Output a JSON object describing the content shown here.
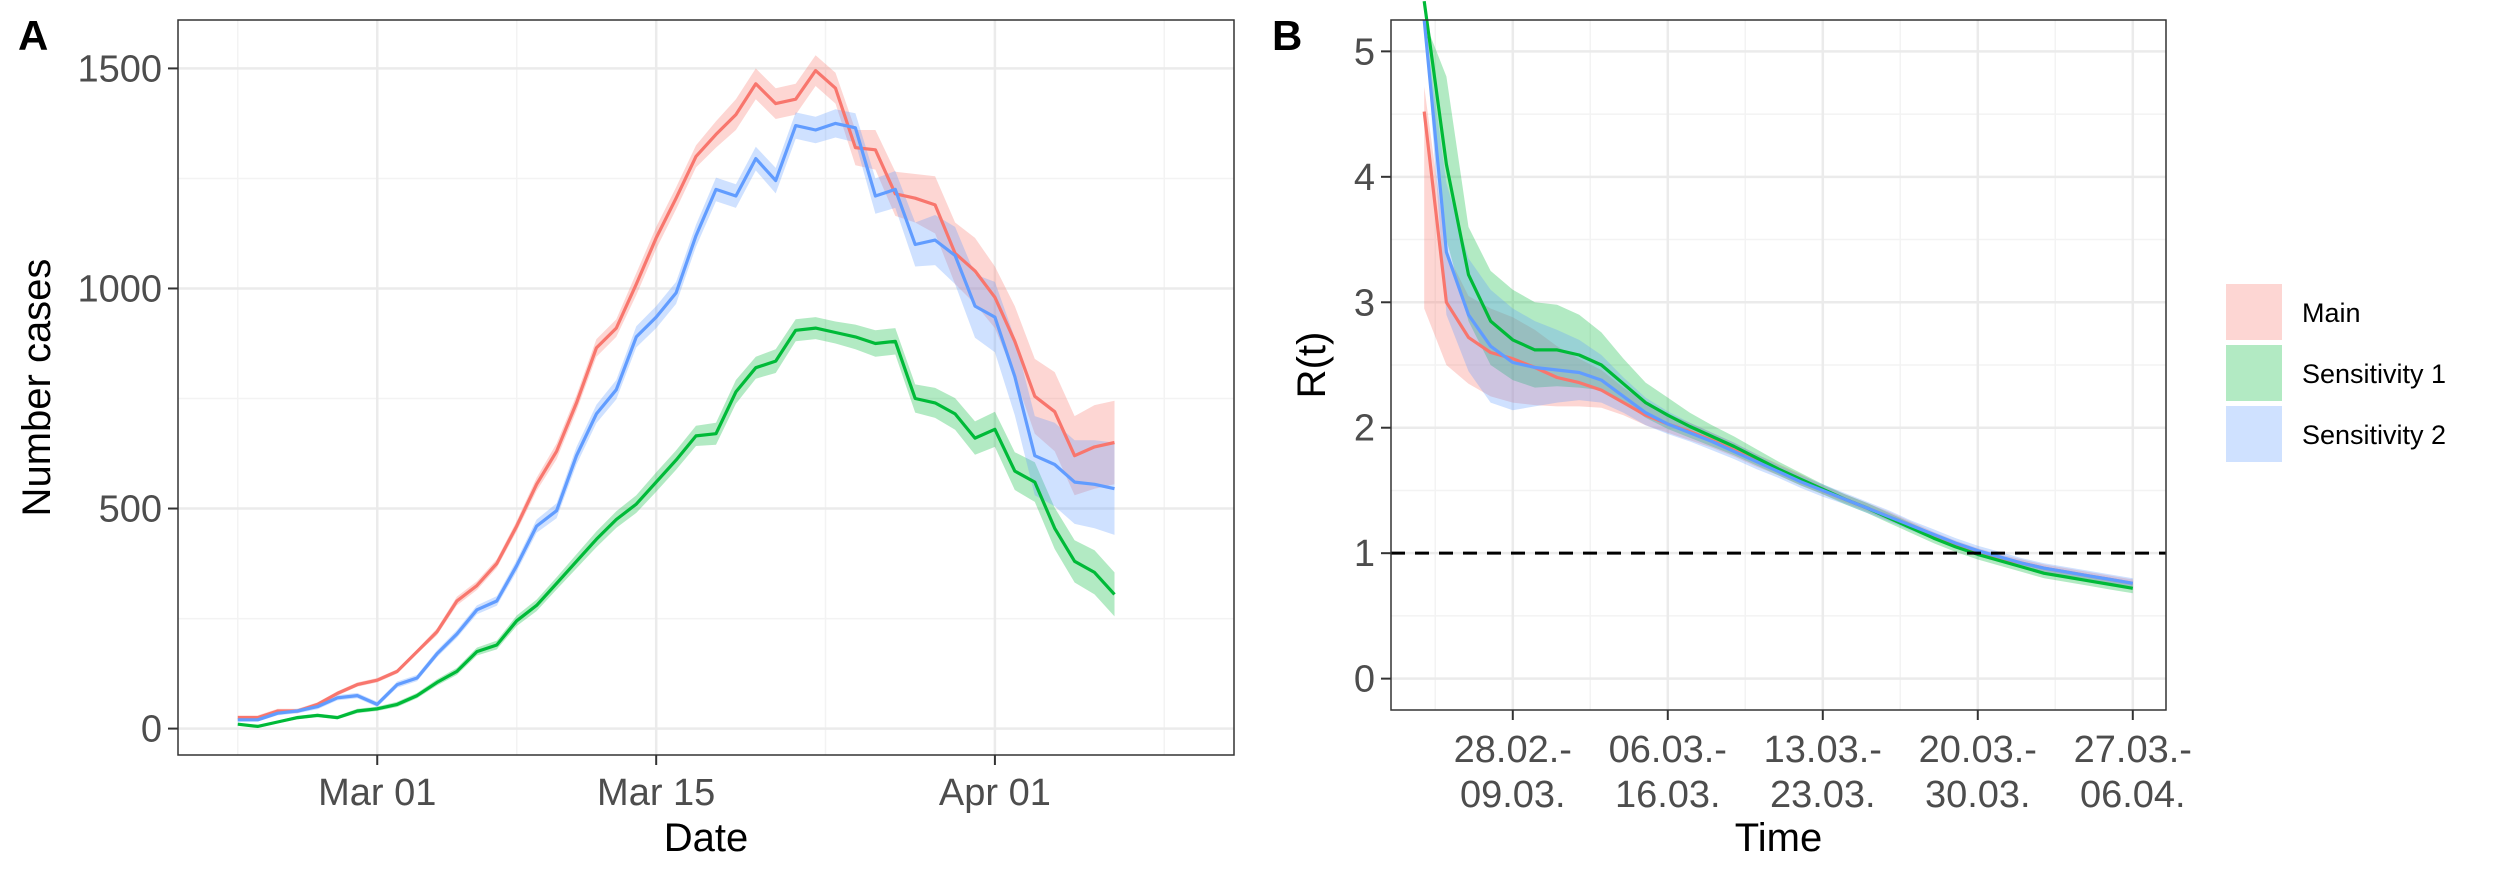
{
  "chart_data": [
    {
      "panel_label": "A",
      "type": "line",
      "xlabel": "Date",
      "ylabel": "Number cases",
      "x_tick_labels": [
        "Mar 01",
        "Mar 15",
        "Apr 01"
      ],
      "x_tick_dates": [
        "2020-03-01",
        "2020-03-15",
        "2020-04-01"
      ],
      "xlim": [
        "2020-02-20",
        "2020-04-13"
      ],
      "y_ticks": [
        0,
        500,
        1000,
        1500
      ],
      "ylim": [
        -60,
        1610
      ],
      "grid": true,
      "x": [
        "2020-02-23",
        "2020-02-24",
        "2020-02-25",
        "2020-02-26",
        "2020-02-27",
        "2020-02-28",
        "2020-02-29",
        "2020-03-01",
        "2020-03-02",
        "2020-03-03",
        "2020-03-04",
        "2020-03-05",
        "2020-03-06",
        "2020-03-07",
        "2020-03-08",
        "2020-03-09",
        "2020-03-10",
        "2020-03-11",
        "2020-03-12",
        "2020-03-13",
        "2020-03-14",
        "2020-03-15",
        "2020-03-16",
        "2020-03-17",
        "2020-03-18",
        "2020-03-19",
        "2020-03-20",
        "2020-03-21",
        "2020-03-22",
        "2020-03-23",
        "2020-03-24",
        "2020-03-25",
        "2020-03-26",
        "2020-03-27",
        "2020-03-28",
        "2020-03-29",
        "2020-03-30",
        "2020-03-31",
        "2020-04-01",
        "2020-04-02",
        "2020-04-03",
        "2020-04-04",
        "2020-04-05",
        "2020-04-06",
        "2020-04-07"
      ],
      "series": [
        {
          "name": "Main",
          "color": "#F8766D",
          "values": [
            25,
            25,
            40,
            40,
            55,
            80,
            100,
            110,
            130,
            175,
            220,
            290,
            325,
            375,
            460,
            555,
            630,
            740,
            865,
            910,
            1010,
            1115,
            1205,
            1300,
            1350,
            1395,
            1465,
            1420,
            1430,
            1495,
            1455,
            1320,
            1315,
            1215,
            1205,
            1190,
            1080,
            1040,
            980,
            880,
            755,
            720,
            620,
            640,
            650
          ],
          "lower": [
            20,
            20,
            35,
            35,
            50,
            75,
            95,
            105,
            125,
            170,
            212,
            280,
            315,
            365,
            448,
            540,
            612,
            722,
            845,
            890,
            985,
            1090,
            1180,
            1275,
            1320,
            1360,
            1430,
            1385,
            1395,
            1460,
            1420,
            1280,
            1270,
            1165,
            1150,
            1125,
            1010,
            965,
            910,
            800,
            670,
            630,
            530,
            545,
            555
          ],
          "upper": [
            30,
            30,
            45,
            45,
            60,
            85,
            105,
            115,
            135,
            180,
            228,
            300,
            335,
            385,
            472,
            570,
            648,
            758,
            885,
            930,
            1035,
            1140,
            1230,
            1325,
            1380,
            1430,
            1500,
            1455,
            1465,
            1530,
            1490,
            1360,
            1360,
            1265,
            1260,
            1255,
            1150,
            1115,
            1050,
            960,
            840,
            810,
            710,
            735,
            745
          ]
        },
        {
          "name": "Sensitivity 1",
          "color": "#00BA38",
          "values": [
            10,
            5,
            15,
            25,
            30,
            25,
            40,
            45,
            55,
            75,
            105,
            130,
            175,
            190,
            245,
            280,
            330,
            380,
            430,
            475,
            510,
            560,
            610,
            665,
            670,
            765,
            820,
            835,
            905,
            910,
            900,
            890,
            875,
            880,
            750,
            740,
            715,
            660,
            680,
            585,
            560,
            455,
            380,
            355,
            305
          ],
          "lower": [
            8,
            3,
            12,
            21,
            26,
            21,
            35,
            40,
            49,
            69,
            98,
            122,
            166,
            180,
            233,
            267,
            316,
            364,
            412,
            456,
            490,
            538,
            588,
            642,
            645,
            738,
            795,
            808,
            880,
            885,
            875,
            862,
            845,
            850,
            718,
            706,
            679,
            622,
            640,
            542,
            515,
            408,
            332,
            305,
            255
          ],
          "upper": [
            12,
            7,
            18,
            29,
            34,
            29,
            45,
            50,
            61,
            81,
            112,
            138,
            184,
            200,
            257,
            293,
            344,
            396,
            448,
            494,
            530,
            582,
            632,
            688,
            695,
            792,
            845,
            862,
            930,
            935,
            925,
            918,
            905,
            910,
            782,
            774,
            751,
            698,
            720,
            628,
            605,
            502,
            428,
            405,
            355
          ]
        },
        {
          "name": "Sensitivity 2",
          "color": "#619CFF",
          "values": [
            20,
            20,
            35,
            40,
            50,
            70,
            75,
            55,
            100,
            115,
            170,
            215,
            270,
            290,
            370,
            460,
            495,
            620,
            715,
            770,
            890,
            935,
            990,
            1120,
            1225,
            1210,
            1295,
            1245,
            1370,
            1360,
            1375,
            1365,
            1210,
            1225,
            1100,
            1110,
            1075,
            960,
            935,
            800,
            620,
            600,
            560,
            555,
            545
          ],
          "lower": [
            16,
            16,
            30,
            35,
            44,
            64,
            69,
            49,
            93,
            108,
            162,
            206,
            260,
            279,
            357,
            445,
            478,
            600,
            694,
            748,
            866,
            910,
            965,
            1095,
            1198,
            1183,
            1268,
            1216,
            1340,
            1330,
            1343,
            1332,
            1170,
            1183,
            1050,
            1053,
            1010,
            888,
            855,
            712,
            530,
            505,
            465,
            455,
            440
          ],
          "upper": [
            24,
            24,
            40,
            45,
            56,
            76,
            81,
            61,
            107,
            122,
            178,
            224,
            280,
            301,
            383,
            475,
            512,
            640,
            736,
            792,
            914,
            960,
            1015,
            1145,
            1252,
            1237,
            1322,
            1274,
            1400,
            1390,
            1407,
            1398,
            1250,
            1267,
            1150,
            1167,
            1140,
            1032,
            1015,
            888,
            710,
            695,
            655,
            655,
            650
          ]
        }
      ]
    },
    {
      "panel_label": "B",
      "type": "line",
      "xlabel": "Time",
      "ylabel": "R(t)",
      "x_tick_labels": [
        {
          "line1": "28.02.-",
          "line2": "09.03."
        },
        {
          "line1": "06.03.-",
          "line2": "16.03."
        },
        {
          "line1": "13.03.-",
          "line2": "23.03."
        },
        {
          "line1": "20.03.-",
          "line2": "30.03."
        },
        {
          "line1": "27.03.-",
          "line2": "06.04."
        }
      ],
      "x_tick_positions": [
        5,
        12,
        19,
        26,
        33
      ],
      "xlim": [
        -0.5,
        34.5
      ],
      "y_ticks": [
        0,
        1,
        2,
        3,
        4,
        5
      ],
      "ylim": [
        -0.25,
        5.25
      ],
      "reference_line": {
        "y": 1,
        "style": "dashed"
      },
      "grid": true,
      "legend": {
        "position": "right",
        "entries": [
          "Main",
          "Sensitivity 1",
          "Sensitivity 2"
        ]
      },
      "series": [
        {
          "name": "Main",
          "color": "#F8766D",
          "x": [
            1,
            2,
            3,
            4,
            5,
            6,
            7,
            8,
            9,
            10,
            11,
            12,
            13,
            14,
            15,
            16,
            17,
            18,
            19,
            20,
            21,
            22,
            23,
            24,
            25,
            26,
            27,
            28,
            29,
            30,
            31,
            32,
            33
          ],
          "values": [
            4.52,
            3.0,
            2.72,
            2.6,
            2.55,
            2.48,
            2.4,
            2.36,
            2.3,
            2.2,
            2.1,
            2.03,
            1.97,
            1.9,
            1.82,
            1.74,
            1.66,
            1.58,
            1.5,
            1.43,
            1.36,
            1.29,
            1.22,
            1.14,
            1.07,
            1.01,
            0.96,
            0.92,
            0.88,
            0.85,
            0.82,
            0.79,
            0.76
          ],
          "lower": [
            2.95,
            2.5,
            2.35,
            2.25,
            2.2,
            2.18,
            2.17,
            2.17,
            2.16,
            2.1,
            2.02,
            1.96,
            1.9,
            1.84,
            1.77,
            1.69,
            1.62,
            1.54,
            1.47,
            1.4,
            1.33,
            1.26,
            1.19,
            1.11,
            1.04,
            0.98,
            0.93,
            0.89,
            0.85,
            0.82,
            0.79,
            0.76,
            0.73
          ],
          "upper": [
            4.72,
            3.4,
            3.05,
            2.95,
            2.88,
            2.78,
            2.65,
            2.55,
            2.46,
            2.32,
            2.2,
            2.11,
            2.04,
            1.96,
            1.88,
            1.79,
            1.71,
            1.63,
            1.54,
            1.47,
            1.4,
            1.33,
            1.25,
            1.17,
            1.1,
            1.04,
            0.99,
            0.95,
            0.91,
            0.88,
            0.85,
            0.82,
            0.79
          ]
        },
        {
          "name": "Sensitivity 1",
          "color": "#00BA38",
          "x": [
            1,
            2,
            3,
            4,
            5,
            6,
            7,
            8,
            9,
            10,
            11,
            12,
            13,
            14,
            15,
            16,
            17,
            18,
            19,
            20,
            21,
            22,
            23,
            24,
            25,
            26,
            27,
            28,
            29,
            30,
            31,
            32,
            33
          ],
          "values": [
            5.4,
            4.1,
            3.22,
            2.85,
            2.7,
            2.62,
            2.62,
            2.58,
            2.5,
            2.35,
            2.2,
            2.1,
            2.01,
            1.93,
            1.85,
            1.76,
            1.67,
            1.59,
            1.51,
            1.43,
            1.36,
            1.28,
            1.2,
            1.12,
            1.05,
            0.99,
            0.94,
            0.89,
            0.84,
            0.81,
            0.78,
            0.75,
            0.72
          ],
          "lower": [
            5.25,
            3.5,
            2.85,
            2.5,
            2.38,
            2.32,
            2.33,
            2.32,
            2.3,
            2.2,
            2.08,
            1.99,
            1.92,
            1.85,
            1.78,
            1.7,
            1.62,
            1.54,
            1.47,
            1.39,
            1.32,
            1.24,
            1.16,
            1.08,
            1.01,
            0.95,
            0.9,
            0.85,
            0.8,
            0.77,
            0.74,
            0.71,
            0.68
          ],
          "upper": [
            5.25,
            4.8,
            3.6,
            3.25,
            3.1,
            3.0,
            2.98,
            2.9,
            2.76,
            2.55,
            2.36,
            2.24,
            2.12,
            2.02,
            1.93,
            1.83,
            1.73,
            1.64,
            1.55,
            1.47,
            1.4,
            1.32,
            1.24,
            1.16,
            1.09,
            1.03,
            0.98,
            0.93,
            0.88,
            0.85,
            0.82,
            0.79,
            0.76
          ]
        },
        {
          "name": "Sensitivity 2",
          "color": "#619CFF",
          "x": [
            1,
            2,
            3,
            4,
            5,
            6,
            7,
            8,
            9,
            10,
            11,
            12,
            13,
            14,
            15,
            16,
            17,
            18,
            19,
            20,
            21,
            22,
            23,
            24,
            25,
            26,
            27,
            28,
            29,
            30,
            31,
            32,
            33
          ],
          "values": [
            5.25,
            3.4,
            2.9,
            2.65,
            2.52,
            2.48,
            2.46,
            2.44,
            2.38,
            2.25,
            2.12,
            2.03,
            1.96,
            1.89,
            1.81,
            1.73,
            1.65,
            1.57,
            1.5,
            1.43,
            1.36,
            1.29,
            1.22,
            1.15,
            1.08,
            1.02,
            0.97,
            0.92,
            0.88,
            0.85,
            0.82,
            0.79,
            0.76
          ],
          "lower": [
            5.25,
            2.9,
            2.45,
            2.2,
            2.14,
            2.17,
            2.2,
            2.22,
            2.2,
            2.12,
            2.02,
            1.95,
            1.89,
            1.82,
            1.75,
            1.67,
            1.6,
            1.52,
            1.45,
            1.39,
            1.32,
            1.25,
            1.18,
            1.11,
            1.04,
            0.98,
            0.93,
            0.88,
            0.84,
            0.81,
            0.78,
            0.75,
            0.72
          ],
          "upper": [
            5.25,
            3.95,
            3.35,
            3.1,
            2.95,
            2.85,
            2.78,
            2.7,
            2.58,
            2.4,
            2.24,
            2.13,
            2.04,
            1.96,
            1.88,
            1.79,
            1.7,
            1.62,
            1.55,
            1.48,
            1.41,
            1.34,
            1.26,
            1.19,
            1.12,
            1.06,
            1.01,
            0.96,
            0.92,
            0.89,
            0.86,
            0.83,
            0.8
          ]
        }
      ]
    }
  ]
}
